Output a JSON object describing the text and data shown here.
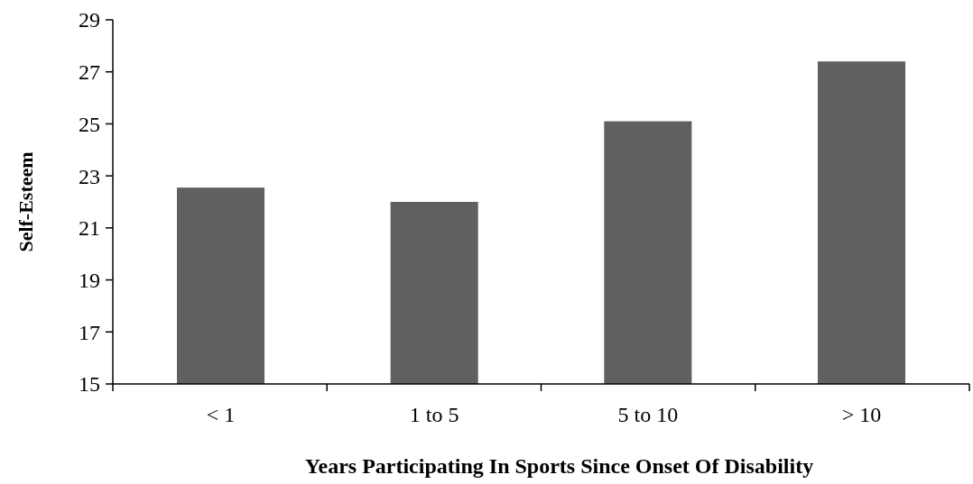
{
  "chart_data": {
    "type": "bar",
    "xlabel": "Years Participating In Sports Since Onset Of Disability",
    "ylabel": "Self-Esteem",
    "categories": [
      "< 1",
      "1 to 5",
      "5 to 10",
      "> 10"
    ],
    "values": [
      22.55,
      22.0,
      25.1,
      27.4
    ],
    "color": "#606060",
    "ylim": [
      15,
      29
    ],
    "yticks": [
      15,
      17,
      19,
      21,
      23,
      25,
      27,
      29
    ]
  }
}
